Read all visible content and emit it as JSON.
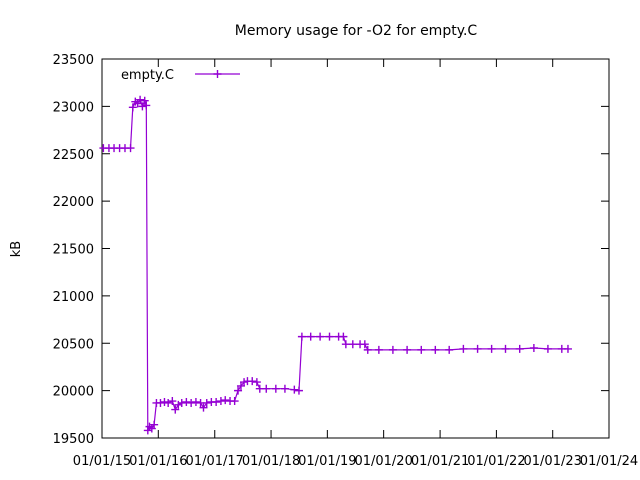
{
  "chart_data": {
    "type": "line",
    "title": "Memory usage for -O2 for empty.C",
    "xlabel": "",
    "ylabel": "kB",
    "ylim": [
      19500,
      23500
    ],
    "yticks": [
      19500,
      20000,
      20500,
      21000,
      21500,
      22000,
      22500,
      23000,
      23500
    ],
    "xlim": [
      "2015-01-01",
      "2024-01-01"
    ],
    "xtick_labels": [
      "01/01/15",
      "01/01/16",
      "01/01/17",
      "01/01/18",
      "01/01/19",
      "01/01/20",
      "01/01/21",
      "01/01/22",
      "01/01/23",
      "01/01/24"
    ],
    "xtick_dates": [
      "2015-01-01",
      "2016-01-01",
      "2017-01-01",
      "2018-01-01",
      "2019-01-01",
      "2020-01-01",
      "2021-01-01",
      "2022-01-01",
      "2023-01-01",
      "2024-01-01"
    ],
    "legend_position": "top-left",
    "grid": false,
    "series": [
      {
        "name": "empty.C",
        "color": "#9400d3",
        "points": [
          [
            "2015-01-10",
            22560
          ],
          [
            "2015-02-15",
            22560
          ],
          [
            "2015-03-20",
            22560
          ],
          [
            "2015-04-25",
            22560
          ],
          [
            "2015-05-30",
            22560
          ],
          [
            "2015-07-05",
            22560
          ],
          [
            "2015-07-20",
            22990
          ],
          [
            "2015-08-05",
            23050
          ],
          [
            "2015-08-20",
            23030
          ],
          [
            "2015-09-05",
            23070
          ],
          [
            "2015-09-20",
            23000
          ],
          [
            "2015-10-05",
            23060
          ],
          [
            "2015-10-15",
            23010
          ],
          [
            "2015-10-25",
            19580
          ],
          [
            "2015-11-05",
            19620
          ],
          [
            "2015-11-20",
            19600
          ],
          [
            "2015-12-05",
            19640
          ],
          [
            "2015-12-20",
            19870
          ],
          [
            "2016-01-15",
            19870
          ],
          [
            "2016-02-10",
            19880
          ],
          [
            "2016-03-05",
            19870
          ],
          [
            "2016-04-01",
            19890
          ],
          [
            "2016-04-20",
            19800
          ],
          [
            "2016-05-10",
            19850
          ],
          [
            "2016-06-01",
            19870
          ],
          [
            "2016-07-01",
            19880
          ],
          [
            "2016-08-01",
            19870
          ],
          [
            "2016-09-01",
            19880
          ],
          [
            "2016-10-01",
            19870
          ],
          [
            "2016-10-20",
            19820
          ],
          [
            "2016-11-10",
            19870
          ],
          [
            "2016-12-10",
            19880
          ],
          [
            "2017-01-10",
            19880
          ],
          [
            "2017-02-10",
            19890
          ],
          [
            "2017-03-10",
            19900
          ],
          [
            "2017-04-10",
            19890
          ],
          [
            "2017-05-10",
            19890
          ],
          [
            "2017-06-01",
            20000
          ],
          [
            "2017-06-20",
            20050
          ],
          [
            "2017-07-10",
            20090
          ],
          [
            "2017-08-01",
            20100
          ],
          [
            "2017-09-01",
            20100
          ],
          [
            "2017-10-01",
            20090
          ],
          [
            "2017-10-20",
            20020
          ],
          [
            "2017-12-01",
            20020
          ],
          [
            "2018-02-01",
            20020
          ],
          [
            "2018-04-01",
            20020
          ],
          [
            "2018-06-01",
            20010
          ],
          [
            "2018-07-01",
            20000
          ],
          [
            "2018-07-20",
            20570
          ],
          [
            "2018-09-15",
            20570
          ],
          [
            "2018-11-15",
            20570
          ],
          [
            "2019-01-15",
            20570
          ],
          [
            "2019-03-15",
            20570
          ],
          [
            "2019-04-15",
            20570
          ],
          [
            "2019-05-01",
            20490
          ],
          [
            "2019-06-15",
            20490
          ],
          [
            "2019-08-01",
            20490
          ],
          [
            "2019-09-01",
            20490
          ],
          [
            "2019-09-20",
            20430
          ],
          [
            "2019-12-01",
            20430
          ],
          [
            "2020-03-01",
            20430
          ],
          [
            "2020-06-01",
            20430
          ],
          [
            "2020-09-01",
            20430
          ],
          [
            "2020-12-01",
            20430
          ],
          [
            "2021-03-01",
            20430
          ],
          [
            "2021-06-01",
            20440
          ],
          [
            "2021-09-01",
            20440
          ],
          [
            "2021-12-01",
            20440
          ],
          [
            "2022-03-01",
            20440
          ],
          [
            "2022-06-01",
            20440
          ],
          [
            "2022-09-01",
            20450
          ],
          [
            "2022-12-01",
            20440
          ],
          [
            "2023-03-01",
            20440
          ],
          [
            "2023-04-10",
            20440
          ]
        ]
      }
    ]
  }
}
